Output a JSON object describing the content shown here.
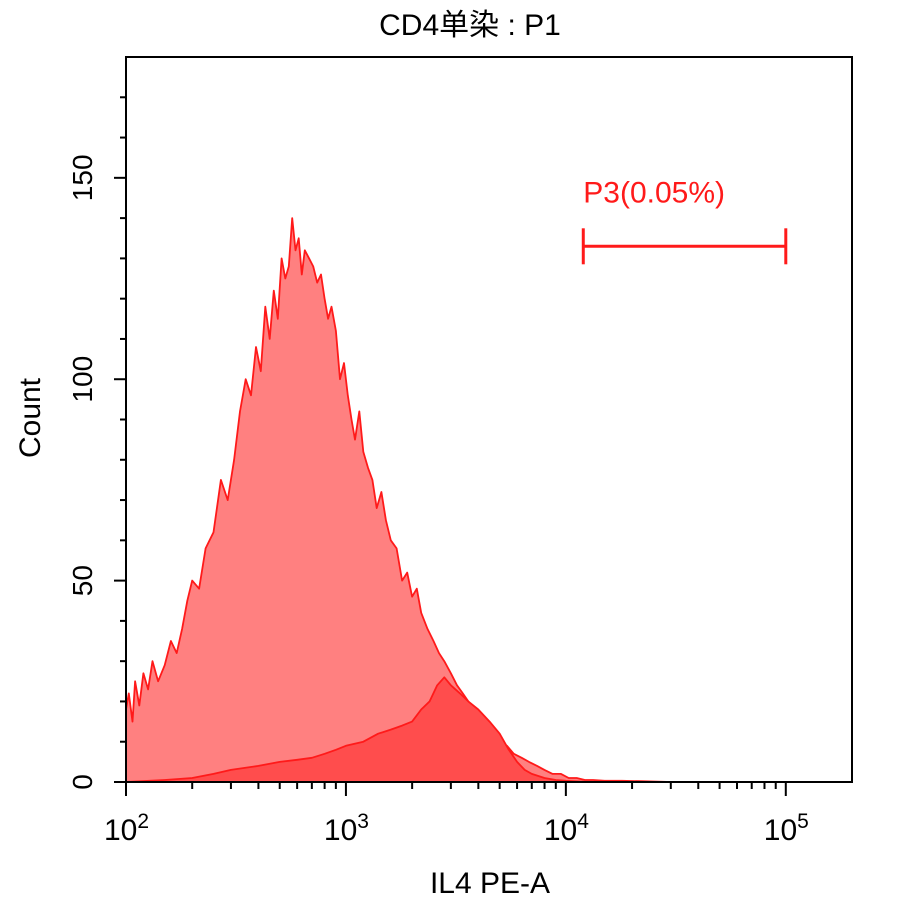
{
  "chart_data": {
    "type": "area",
    "title": "CD4单染 : P1",
    "xlabel": "IL4 PE-A",
    "ylabel": "Count",
    "x_scale": "log",
    "xlim": [
      100,
      200000
    ],
    "ylim": [
      0,
      180
    ],
    "x_ticks": [
      {
        "base": "10",
        "exp": "2",
        "value": 100
      },
      {
        "base": "10",
        "exp": "3",
        "value": 1000
      },
      {
        "base": "10",
        "exp": "4",
        "value": 10000
      },
      {
        "base": "10",
        "exp": "5",
        "value": 100000
      }
    ],
    "y_ticks": [
      {
        "label": "0",
        "value": 0
      },
      {
        "label": "50",
        "value": 50
      },
      {
        "label": "100",
        "value": 100
      },
      {
        "label": "150",
        "value": 150
      }
    ],
    "color": "#ff1a1a",
    "series": [
      {
        "fill": "#ff8080",
        "x": [
          100,
          103,
          107,
          110,
          115,
          120,
          126,
          132,
          140,
          150,
          160,
          170,
          180,
          190,
          200,
          215,
          230,
          250,
          270,
          290,
          310,
          330,
          350,
          370,
          390,
          410,
          430,
          450,
          470,
          490,
          510,
          530,
          550,
          570,
          590,
          610,
          630,
          650,
          680,
          710,
          740,
          770,
          800,
          830,
          860,
          900,
          940,
          980,
          1020,
          1060,
          1100,
          1150,
          1200,
          1260,
          1320,
          1380,
          1450,
          1520,
          1600,
          1700,
          1800,
          1900,
          2000,
          2100,
          2200,
          2350,
          2500,
          2650,
          2800,
          3000,
          3200,
          3400,
          3600,
          3800,
          4000,
          4300,
          4600,
          5000,
          5400,
          5800,
          6300,
          6800,
          7400,
          8000,
          8700,
          9500,
          10300,
          11200,
          12200,
          13300,
          15000,
          18000,
          22000,
          30000,
          40000,
          50000,
          70000,
          100000,
          150000
        ],
        "values": [
          18,
          22,
          15,
          25,
          19,
          27,
          23,
          30,
          25,
          29,
          35,
          32,
          38,
          45,
          50,
          48,
          58,
          62,
          75,
          70,
          80,
          92,
          100,
          96,
          108,
          102,
          118,
          110,
          122,
          115,
          130,
          125,
          128,
          140,
          132,
          135,
          126,
          132,
          130,
          128,
          124,
          126,
          120,
          115,
          118,
          112,
          100,
          104,
          96,
          90,
          85,
          92,
          82,
          78,
          75,
          68,
          72,
          65,
          60,
          58,
          50,
          52,
          46,
          48,
          42,
          38,
          35,
          32,
          30,
          27,
          24,
          22,
          20,
          18,
          16,
          14,
          12,
          10,
          9,
          7,
          6,
          5,
          4,
          3,
          2,
          2,
          1,
          1,
          0.5,
          0.5,
          0.3,
          0.3,
          0.2,
          0,
          0,
          0,
          0,
          0,
          0
        ]
      },
      {
        "fill": "#ff4d4d",
        "x": [
          100,
          150,
          200,
          250,
          300,
          400,
          500,
          600,
          700,
          800,
          900,
          1000,
          1200,
          1400,
          1600,
          1800,
          2000,
          2200,
          2400,
          2600,
          2800,
          3000,
          3300,
          3600,
          4000,
          4500,
          5000,
          5500,
          6000,
          6500,
          7000,
          8000,
          9000,
          10000,
          12000,
          15000
        ],
        "values": [
          0,
          0.5,
          1,
          2,
          3,
          4,
          5,
          5.5,
          6,
          7,
          8,
          9,
          10,
          12,
          13,
          14,
          15,
          18,
          20,
          24,
          26,
          24,
          22,
          20,
          18,
          15,
          12,
          8,
          5,
          3,
          2,
          1,
          0.5,
          0.3,
          0.1,
          0
        ]
      }
    ],
    "gate": {
      "label": "P3(0.05%)",
      "x_range": [
        12000,
        100000
      ],
      "y": 133
    }
  }
}
